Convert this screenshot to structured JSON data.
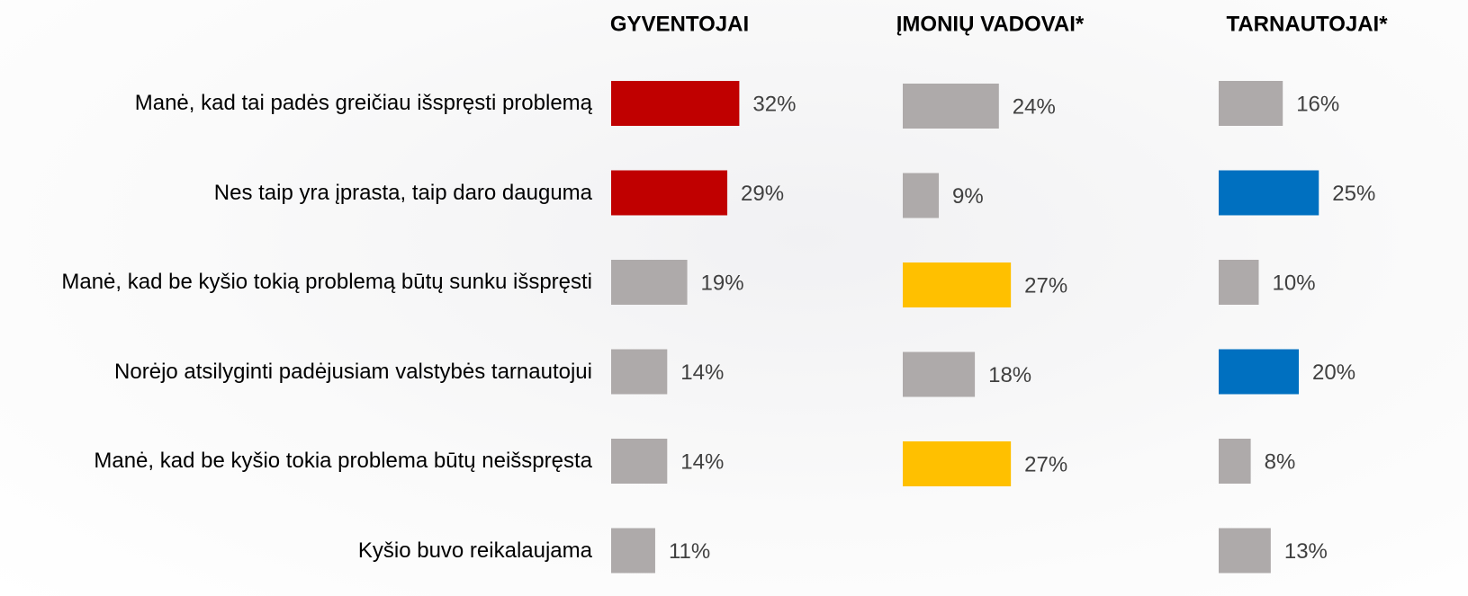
{
  "chart_data": [
    {
      "type": "bar",
      "title": "GYVENTOJAI",
      "categories": [
        "Manė, kad tai padės greičiau išspręsti problemą",
        "Nes taip yra įprasta, taip daro dauguma",
        "Manė, kad be kyšio tokią problemą būtų sunku išspręsti",
        "Norėjo atsilyginti padėjusiam valstybės tarnautojui",
        "Manė, kad be kyšio tokia problema būtų neišspręsta",
        "Kyšio buvo reikalaujama"
      ],
      "values": [
        32,
        29,
        19,
        14,
        14,
        11
      ],
      "value_labels": [
        "32%",
        "29%",
        "19%",
        "14%",
        "14%",
        "11%"
      ],
      "colors": [
        "#c00000",
        "#c00000",
        "#aeaaaa",
        "#aeaaaa",
        "#aeaaaa",
        "#aeaaaa"
      ]
    },
    {
      "type": "bar",
      "title": "ĮMONIŲ VADOVAI*",
      "values": [
        24,
        9,
        27,
        18,
        27,
        null
      ],
      "value_labels": [
        "24%",
        "9%",
        "27%",
        "18%",
        "27%",
        null
      ],
      "colors": [
        "#aeaaaa",
        "#aeaaaa",
        "#ffc000",
        "#aeaaaa",
        "#ffc000",
        null
      ]
    },
    {
      "type": "bar",
      "title": "TARNAUTOJAI*",
      "values": [
        16,
        25,
        10,
        20,
        8,
        13
      ],
      "value_labels": [
        "16%",
        "25%",
        "10%",
        "20%",
        "8%",
        "13%"
      ],
      "colors": [
        "#aeaaaa",
        "#0070c0",
        "#aeaaaa",
        "#0070c0",
        "#aeaaaa",
        "#aeaaaa"
      ]
    }
  ]
}
